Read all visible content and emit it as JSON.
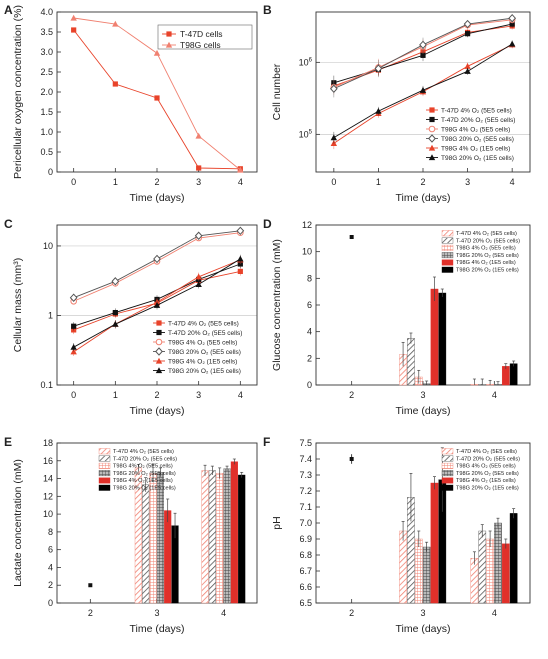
{
  "chart_data": [
    {
      "panel": "A",
      "type": "line",
      "scale": "linear",
      "xlabel": "Time (days)",
      "ylabel": "Pericellular oxygen concentration (%)",
      "xlim": [
        -0.4,
        4.4
      ],
      "ylim": [
        0,
        4
      ],
      "xticks": [
        "0",
        "1",
        "2",
        "3",
        "4"
      ],
      "yticks": [
        "0",
        "0.5",
        "1.0",
        "1.5",
        "2.0",
        "2.5",
        "3.0",
        "3.5",
        "4.0"
      ],
      "legend": "top-right",
      "series": [
        {
          "name": "T-47D cells",
          "color": "#e8432a",
          "marker": "square",
          "dash": false,
          "x": [
            0,
            1,
            2,
            3,
            4
          ],
          "y": [
            3.55,
            2.2,
            1.85,
            0.1,
            0.08
          ]
        },
        {
          "name": "T98G cells",
          "color": "#f08070",
          "marker": "triangle",
          "dash": false,
          "x": [
            0,
            1,
            2,
            3,
            4
          ],
          "y": [
            3.85,
            3.7,
            2.97,
            0.9,
            0.05
          ]
        }
      ]
    },
    {
      "panel": "B",
      "type": "line",
      "scale": "log",
      "xlabel": "Time (days)",
      "ylabel": "Cell number",
      "xlim": [
        -0.4,
        4.4
      ],
      "ylim": [
        30000,
        5000000
      ],
      "xticks": [
        "0",
        "1",
        "2",
        "3",
        "4"
      ],
      "ytick_values": [
        100000,
        1000000
      ],
      "legend": "bottom-right",
      "series": [
        {
          "name": "T-47D 4% O₂ (5E5 cells)",
          "color": "#e8432a",
          "marker": "square",
          "dash": false,
          "x": [
            0,
            1,
            2,
            3,
            4
          ],
          "y": [
            470000,
            780000,
            1400000,
            2600000,
            3200000
          ],
          "err": [
            0.08,
            0.08,
            0.08,
            0.06,
            0.05
          ]
        },
        {
          "name": "T-47D 20% O₂ (5E5 cells)",
          "color": "#111111",
          "marker": "square",
          "dash": false,
          "x": [
            0,
            1,
            2,
            3,
            4
          ],
          "y": [
            520000,
            800000,
            1250000,
            2500000,
            3400000
          ],
          "err": [
            0.1,
            0.08,
            0.08,
            0.05,
            0.05
          ]
        },
        {
          "name": "T98G 4% O₂ (5E5 cells)",
          "color": "#f08070",
          "marker": "open-circle",
          "dash": false,
          "x": [
            0,
            1,
            2,
            3,
            4
          ],
          "y": [
            450000,
            850000,
            1650000,
            3300000,
            3900000
          ],
          "err": [
            0.1,
            0.12,
            0.1,
            0.05,
            0.05
          ]
        },
        {
          "name": "T98G 20% O₂ (5E5 cells)",
          "color": "#555555",
          "marker": "open-diamond",
          "dash": false,
          "x": [
            0,
            1,
            2,
            3,
            4
          ],
          "y": [
            430000,
            820000,
            1750000,
            3400000,
            4100000
          ],
          "err": [
            0.12,
            0.12,
            0.1,
            0.05,
            0.05
          ]
        },
        {
          "name": "T98G 4% O₂ (1E5 cells)",
          "color": "#e8432a",
          "marker": "triangle",
          "dash": false,
          "x": [
            0,
            1,
            2,
            3,
            4
          ],
          "y": [
            75000,
            195000,
            390000,
            880000,
            1750000
          ],
          "err": [
            0.08,
            0.06,
            0.06,
            0.05,
            0.05
          ]
        },
        {
          "name": "T98G 20% O₂ (1E5 cells)",
          "color": "#111111",
          "marker": "triangle",
          "dash": false,
          "x": [
            0,
            1,
            2,
            3,
            4
          ],
          "y": [
            90000,
            210000,
            410000,
            750000,
            1800000
          ],
          "err": [
            0.08,
            0.06,
            0.06,
            0.05,
            0.05
          ]
        }
      ]
    },
    {
      "panel": "C",
      "type": "line",
      "scale": "log",
      "xlabel": "Time (days)",
      "ylabel": "Cellular mass (mm³)",
      "xlim": [
        -0.4,
        4.4
      ],
      "ylim": [
        0.1,
        20
      ],
      "xticks": [
        "0",
        "1",
        "2",
        "3",
        "4"
      ],
      "ytick_values": [
        0.1,
        1,
        10
      ],
      "yticks": [
        "0.1",
        "1",
        "10"
      ],
      "legend": "bottom-right",
      "series": [
        {
          "name": "T-47D 4% O₂ (5E5 cells)",
          "color": "#e8432a",
          "marker": "square",
          "dash": false,
          "x": [
            0,
            1,
            2,
            3,
            4
          ],
          "y": [
            0.62,
            1.05,
            1.5,
            3.2,
            4.3
          ],
          "err": [
            0.06,
            0.06,
            0.06,
            0.06,
            0.06
          ]
        },
        {
          "name": "T-47D 20% O₂ (5E5 cells)",
          "color": "#111111",
          "marker": "square",
          "dash": false,
          "x": [
            0,
            1,
            2,
            3,
            4
          ],
          "y": [
            0.7,
            1.1,
            1.7,
            3.3,
            5.5
          ],
          "err": [
            0.06,
            0.06,
            0.06,
            0.06,
            0.06
          ]
        },
        {
          "name": "T98G 4% O₂ (5E5 cells)",
          "color": "#f08070",
          "marker": "open-circle",
          "dash": false,
          "x": [
            0,
            1,
            2,
            3,
            4
          ],
          "y": [
            1.6,
            2.9,
            6.0,
            13.0,
            15.5
          ],
          "err": [
            0.04,
            0.05,
            0.05,
            0.04,
            0.04
          ]
        },
        {
          "name": "T98G 20% O₂ (5E5 cells)",
          "color": "#555555",
          "marker": "open-diamond",
          "dash": false,
          "x": [
            0,
            1,
            2,
            3,
            4
          ],
          "y": [
            1.8,
            3.1,
            6.5,
            14.0,
            16.5
          ],
          "err": [
            0.04,
            0.05,
            0.05,
            0.04,
            0.04
          ]
        },
        {
          "name": "T98G 4% O₂ (1E5 cells)",
          "color": "#e8432a",
          "marker": "triangle",
          "dash": false,
          "x": [
            0,
            1,
            2,
            3,
            4
          ],
          "y": [
            0.3,
            0.75,
            1.55,
            3.6,
            6.3
          ],
          "err": [
            0.06,
            0.06,
            0.06,
            0.06,
            0.06
          ]
        },
        {
          "name": "T98G 20% O₂ (1E5 cells)",
          "color": "#111111",
          "marker": "triangle",
          "dash": false,
          "x": [
            0,
            1,
            2,
            3,
            4
          ],
          "y": [
            0.35,
            0.75,
            1.4,
            2.8,
            6.5
          ],
          "err": [
            0.06,
            0.06,
            0.06,
            0.06,
            0.06
          ]
        }
      ]
    },
    {
      "panel": "D",
      "type": "bar",
      "xlabel": "Time (days)",
      "ylabel": "Glucose concentration (mM)",
      "ylim": [
        0,
        12
      ],
      "yticks": [
        "0",
        "2",
        "4",
        "6",
        "8",
        "10",
        "12"
      ],
      "categories": [
        "2",
        "3",
        "4"
      ],
      "legend": "top-right",
      "baseline_point": {
        "x": "2",
        "y": 11.1,
        "err": 0.15
      },
      "series": [
        {
          "name": "T-47D 4% O₂ (5E5 cells)",
          "color": "#f08070",
          "pattern": "hatch-red",
          "values": [
            null,
            2.3,
            0.05
          ],
          "err": [
            null,
            0.9,
            0.4
          ]
        },
        {
          "name": "T-47D 20% O₂ (5E5 cells)",
          "color": "#555555",
          "pattern": "hatch-dark",
          "values": [
            null,
            3.5,
            0.05
          ],
          "err": [
            null,
            0.4,
            0.4
          ]
        },
        {
          "name": "T98G 4% O₂ (5E5 cells)",
          "color": "#f08070",
          "pattern": "grid-light",
          "values": [
            null,
            0.6,
            0.05
          ],
          "err": [
            null,
            0.5,
            0.3
          ]
        },
        {
          "name": "T98G 20% O₂ (5E5 cells)",
          "color": "#555555",
          "pattern": "grid-dark",
          "values": [
            null,
            0.1,
            0.05
          ],
          "err": [
            null,
            0.2,
            0.2
          ]
        },
        {
          "name": "T98G 4% O₂ (1E5 cells)",
          "color": "#e0302a",
          "pattern": "solid",
          "values": [
            null,
            7.2,
            1.4
          ],
          "err": [
            null,
            0.9,
            0.2
          ]
        },
        {
          "name": "T98G 20% O₂ (1E5 cells)",
          "color": "#000000",
          "pattern": "solid",
          "values": [
            null,
            6.9,
            1.6
          ],
          "err": [
            null,
            0.3,
            0.2
          ]
        }
      ]
    },
    {
      "panel": "E",
      "type": "bar",
      "xlabel": "Time (days)",
      "ylabel": "Lactate concentration (mM)",
      "ylim": [
        0,
        18
      ],
      "yticks": [
        "0",
        "2",
        "4",
        "6",
        "8",
        "10",
        "12",
        "14",
        "16",
        "18"
      ],
      "categories": [
        "2",
        "3",
        "4"
      ],
      "legend": "top-left",
      "baseline_point": {
        "x": "2",
        "y": 2.0,
        "err": 0.1
      },
      "series": [
        {
          "name": "T-47D 4% O₂ (5E5 cells)",
          "color": "#f08070",
          "pattern": "hatch-red",
          "values": [
            null,
            15.2,
            14.9
          ],
          "err": [
            null,
            0.4,
            0.6
          ]
        },
        {
          "name": "T-47D 20% O₂ (5E5 cells)",
          "color": "#555555",
          "pattern": "hatch-dark",
          "values": [
            null,
            13.3,
            14.9
          ],
          "err": [
            null,
            0.8,
            0.5
          ]
        },
        {
          "name": "T98G 4% O₂ (5E5 cells)",
          "color": "#f08070",
          "pattern": "grid-light",
          "values": [
            null,
            14.6,
            14.6
          ],
          "err": [
            null,
            1.0,
            0.6
          ]
        },
        {
          "name": "T98G 20% O₂ (5E5 cells)",
          "color": "#555555",
          "pattern": "grid-dark",
          "values": [
            null,
            14.7,
            15.1
          ],
          "err": [
            null,
            0.5,
            0.3
          ]
        },
        {
          "name": "T98G 4% O₂ (1E5 cells)",
          "color": "#e0302a",
          "pattern": "solid",
          "values": [
            null,
            10.4,
            15.9
          ],
          "err": [
            null,
            1.3,
            0.3
          ]
        },
        {
          "name": "T98G 20% O₂ (1E5 cells)",
          "color": "#000000",
          "pattern": "solid",
          "values": [
            null,
            8.7,
            14.4
          ],
          "err": [
            null,
            1.4,
            0.3
          ]
        }
      ]
    },
    {
      "panel": "F",
      "type": "bar",
      "xlabel": "Time (days)",
      "ylabel": "pH",
      "ylim": [
        6.5,
        7.5
      ],
      "yticks": [
        "6.5",
        "6.6",
        "6.7",
        "6.8",
        "6.9",
        "7.0",
        "7.1",
        "7.2",
        "7.3",
        "7.4",
        "7.5"
      ],
      "categories": [
        "2",
        "3",
        "4"
      ],
      "legend": "top-right",
      "baseline_point": {
        "x": "2",
        "y": 7.4,
        "err": 0.03
      },
      "series": [
        {
          "name": "T-47D 4% O₂ (5E5 cells)",
          "color": "#f08070",
          "pattern": "hatch-red",
          "values": [
            null,
            6.95,
            6.78
          ],
          "err": [
            null,
            0.06,
            0.04
          ]
        },
        {
          "name": "T-47D 20% O₂ (5E5 cells)",
          "color": "#555555",
          "pattern": "hatch-dark",
          "values": [
            null,
            7.16,
            6.95
          ],
          "err": [
            null,
            0.15,
            0.04
          ]
        },
        {
          "name": "T98G 4% O₂ (5E5 cells)",
          "color": "#f08070",
          "pattern": "grid-light",
          "values": [
            null,
            6.9,
            6.9
          ],
          "err": [
            null,
            0.05,
            0.05
          ]
        },
        {
          "name": "T98G 20% O₂ (5E5 cells)",
          "color": "#555555",
          "pattern": "grid-dark",
          "values": [
            null,
            6.85,
            7.0
          ],
          "err": [
            null,
            0.03,
            0.03
          ]
        },
        {
          "name": "T98G 4% O₂ (1E5 cells)",
          "color": "#e0302a",
          "pattern": "solid",
          "values": [
            null,
            7.25,
            6.87
          ],
          "err": [
            null,
            0.04,
            0.03
          ]
        },
        {
          "name": "T98G 20% O₂ (1E5 cells)",
          "color": "#000000",
          "pattern": "solid",
          "values": [
            null,
            7.27,
            7.06
          ],
          "err": [
            null,
            0.2,
            0.03
          ]
        }
      ]
    }
  ]
}
